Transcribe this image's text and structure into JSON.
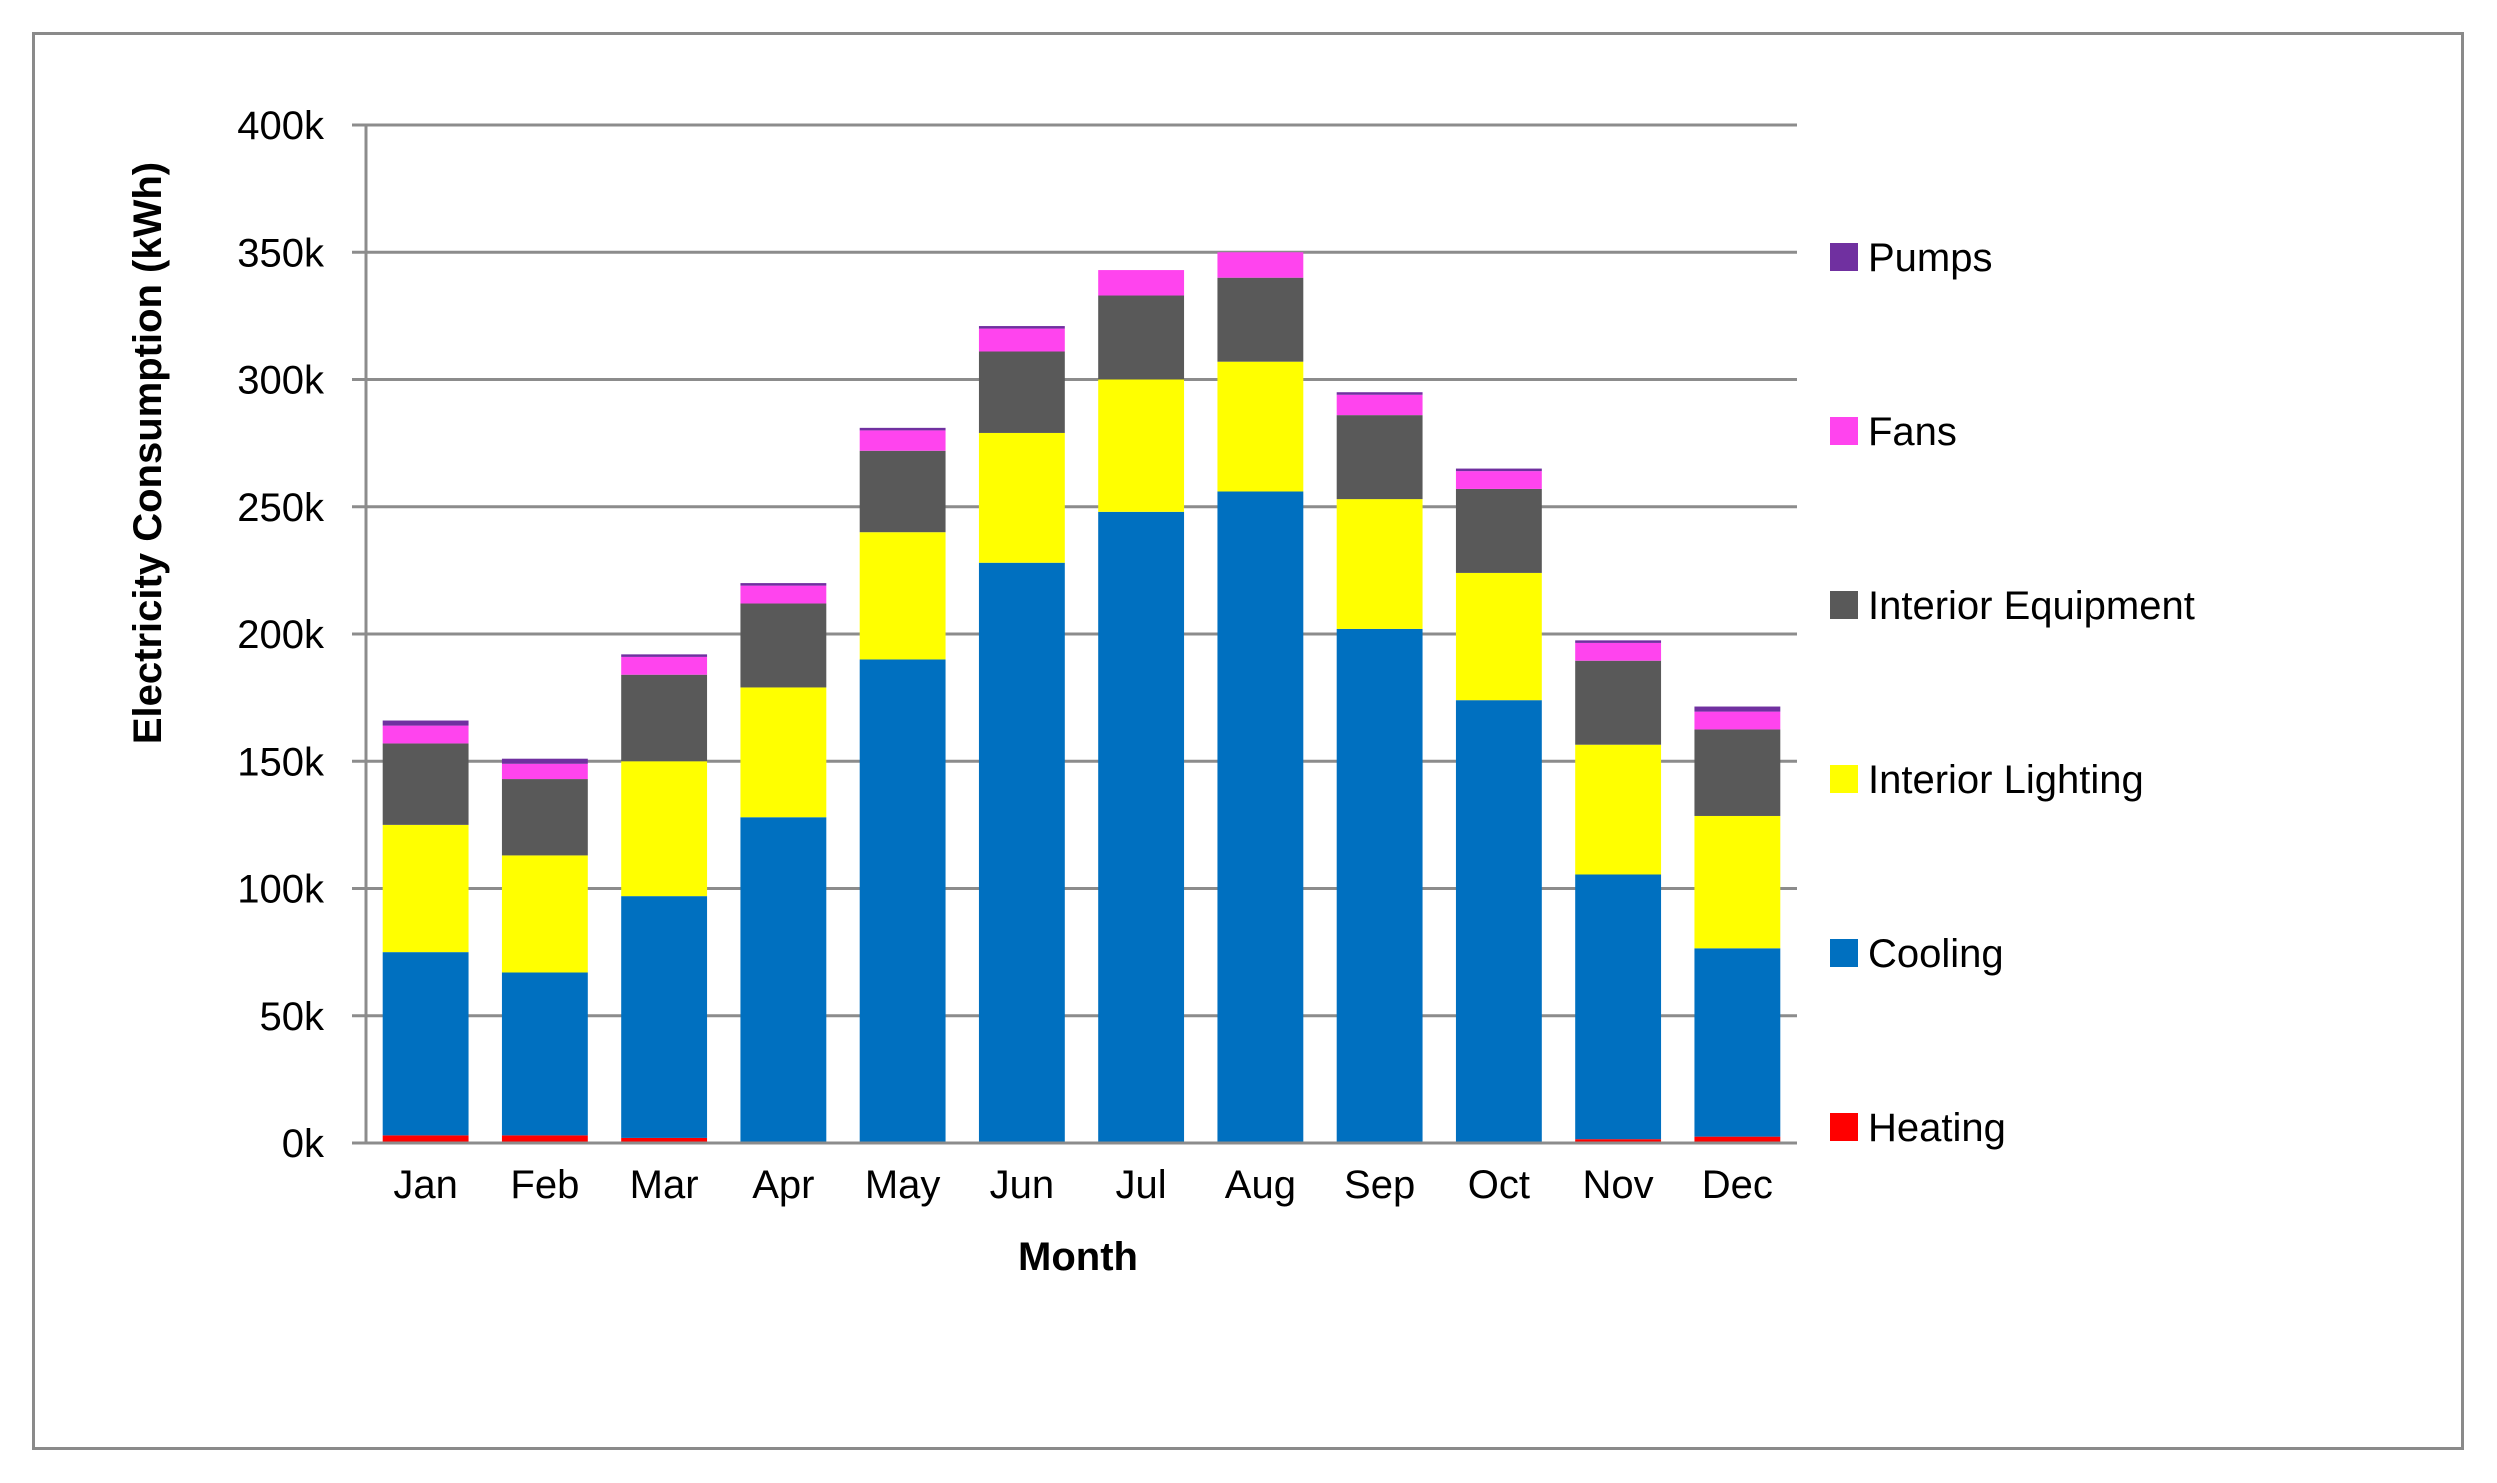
{
  "chart_data": {
    "type": "bar",
    "stacked": true,
    "categories": [
      "Jan",
      "Feb",
      "Mar",
      "Apr",
      "May",
      "Jun",
      "Jul",
      "Aug",
      "Sep",
      "Oct",
      "Nov",
      "Dec"
    ],
    "series": [
      {
        "name": "Heating",
        "color": "#ff0000",
        "values": [
          3000,
          3000,
          2000,
          0,
          0,
          0,
          0,
          0,
          0,
          0,
          1500,
          2500
        ]
      },
      {
        "name": "Cooling",
        "color": "#0070c0",
        "values": [
          72000,
          64000,
          95000,
          128000,
          190000,
          228000,
          248000,
          256000,
          202000,
          174000,
          104000,
          74000
        ]
      },
      {
        "name": "Interior Lighting",
        "color": "#ffff00",
        "values": [
          50000,
          46000,
          53000,
          51000,
          50000,
          51000,
          52000,
          51000,
          51000,
          50000,
          51000,
          52000
        ]
      },
      {
        "name": "Interior Equipment",
        "color": "#595959",
        "values": [
          32000,
          30000,
          34000,
          33000,
          32000,
          32000,
          33000,
          33000,
          33000,
          33000,
          33000,
          34000
        ]
      },
      {
        "name": "Fans",
        "color": "#ff44ee",
        "values": [
          7000,
          6000,
          7000,
          7000,
          8000,
          9000,
          10000,
          10000,
          8000,
          7000,
          7000,
          7000
        ]
      },
      {
        "name": "Pumps",
        "color": "#7030a0",
        "values": [
          2000,
          2000,
          1000,
          1000,
          1000,
          1000,
          0,
          0,
          1000,
          1000,
          1000,
          2000
        ]
      }
    ],
    "legend_order": [
      "Pumps",
      "Fans",
      "Interior Equipment",
      "Interior Lighting",
      "Cooling",
      "Heating"
    ],
    "xlabel": "Month",
    "ylabel": "Electricity Consumption (kWh)",
    "yticks": [
      "0k",
      "50k",
      "100k",
      "150k",
      "200k",
      "250k",
      "300k",
      "350k",
      "400k"
    ],
    "ylim": [
      0,
      400000
    ],
    "grid": true,
    "legend_position": "right"
  }
}
